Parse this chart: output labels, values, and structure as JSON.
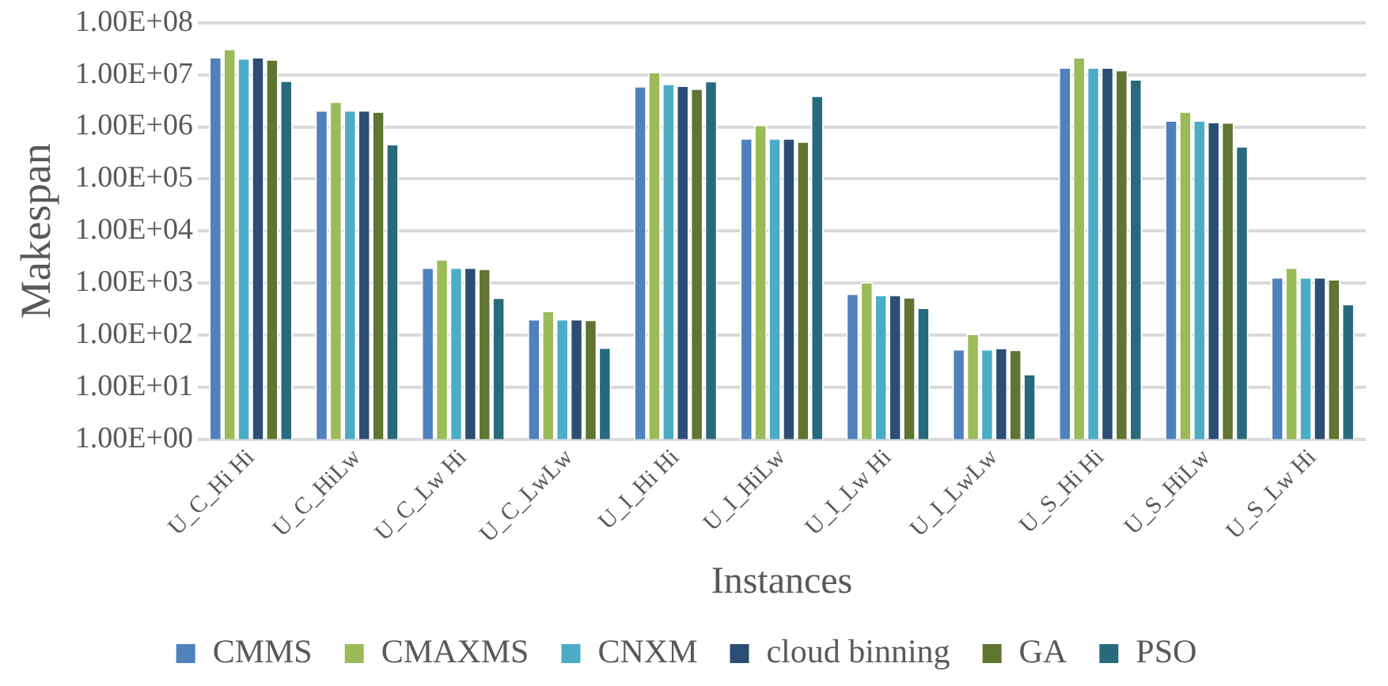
{
  "chart_data": {
    "type": "bar",
    "xlabel": "Instances",
    "ylabel": "Makespan",
    "categories": [
      "U_C_Hi Hi",
      "U_C_HiLw",
      "U_C_Lw Hi",
      "U_C_LwLw",
      "U_I_Hi Hi",
      "U_I_HiLw",
      "U_I_Lw Hi",
      "U_I_LwLw",
      "U_S_Hi Hi",
      "U_S_HiLw",
      "U_S_Lw Hi"
    ],
    "series": [
      {
        "name": "CMMS",
        "color": "#4f81bd",
        "values": [
          22000000,
          2100000,
          2000,
          205,
          6100000,
          610000,
          630,
          54,
          14000000,
          1350000,
          1300
        ]
      },
      {
        "name": "CMAXMS",
        "color": "#9bbb59",
        "values": [
          32000000,
          3100000,
          2900,
          295,
          11500000,
          1100000,
          1050,
          107,
          22000000,
          2000000,
          2000
        ]
      },
      {
        "name": "CNXM",
        "color": "#4bacc6",
        "values": [
          21000000,
          2100000,
          2000,
          205,
          6800000,
          610000,
          600,
          54,
          14000000,
          1350000,
          1300
        ]
      },
      {
        "name": "cloud binning",
        "color": "#2c4d75",
        "values": [
          22000000,
          2100000,
          2000,
          205,
          6300000,
          610000,
          600,
          57,
          14000000,
          1260000,
          1300
        ]
      },
      {
        "name": "GA",
        "color": "#5f7530",
        "values": [
          20000000,
          2000000,
          1900,
          200,
          5500000,
          530000,
          540,
          53,
          12500000,
          1230000,
          1200
        ]
      },
      {
        "name": "PSO",
        "color": "#276a7c",
        "values": [
          7800000,
          470000,
          530,
          58,
          7700000,
          4000000,
          340,
          18,
          8300000,
          430000,
          400
        ]
      }
    ],
    "log": "y",
    "ylim": [
      1,
      100000000
    ],
    "yticks": [
      {
        "value": 1,
        "label": "1.00E+00"
      },
      {
        "value": 10,
        "label": "1.00E+01"
      },
      {
        "value": 100,
        "label": "1.00E+02"
      },
      {
        "value": 1000,
        "label": "1.00E+03"
      },
      {
        "value": 10000,
        "label": "1.00E+04"
      },
      {
        "value": 100000,
        "label": "1.00E+05"
      },
      {
        "value": 1000000,
        "label": "1.00E+06"
      },
      {
        "value": 10000000,
        "label": "1.00E+07"
      },
      {
        "value": 100000000,
        "label": "1.00E+08"
      }
    ],
    "grid": "y",
    "legend": "bottom"
  }
}
